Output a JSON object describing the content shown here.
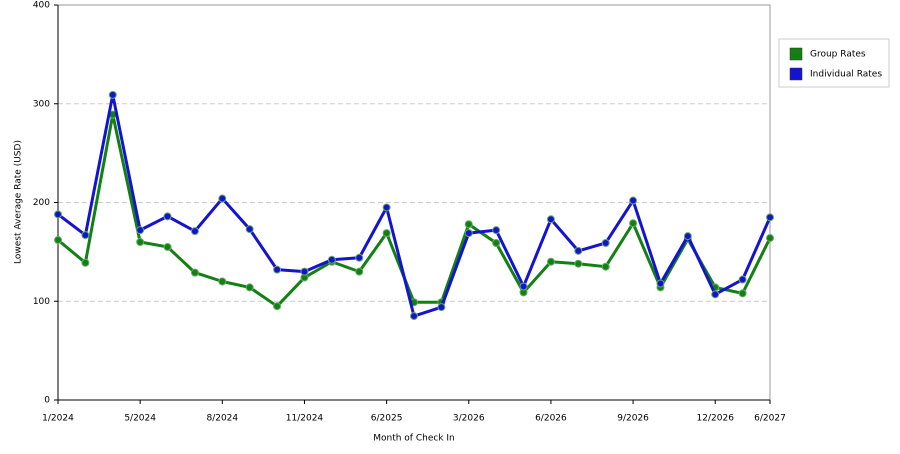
{
  "chart_data": {
    "type": "line",
    "x_label": "Month of Check In",
    "y_label": "Lowest Average Rate (USD)",
    "categories": [
      "1/2024",
      null,
      null,
      "5/2024",
      null,
      null,
      "8/2024",
      null,
      null,
      "11/2024",
      null,
      null,
      "6/2025",
      null,
      null,
      "3/2026",
      null,
      null,
      "6/2026",
      null,
      null,
      "9/2026",
      null,
      null,
      "12/2026",
      null,
      "6/2027"
    ],
    "series": [
      {
        "name": "Group Rates",
        "color": "#138013",
        "values": [
          162,
          139,
          289,
          160,
          155,
          129,
          120,
          114,
          95,
          124,
          140,
          130,
          169,
          99,
          99,
          178,
          159,
          109,
          140,
          138,
          135,
          179,
          114,
          163,
          114,
          108,
          164
        ]
      },
      {
        "name": "Individual Rates",
        "color": "#1414d0",
        "values": [
          188,
          167,
          309,
          172,
          186,
          171,
          204,
          173,
          132,
          130,
          142,
          144,
          195,
          85,
          94,
          169,
          172,
          115,
          183,
          151,
          159,
          202,
          118,
          166,
          107,
          122,
          185
        ]
      }
    ],
    "ylim": [
      0,
      400
    ],
    "yticks": [
      0,
      100,
      200,
      300,
      400
    ],
    "grid": true,
    "legend": "right"
  }
}
